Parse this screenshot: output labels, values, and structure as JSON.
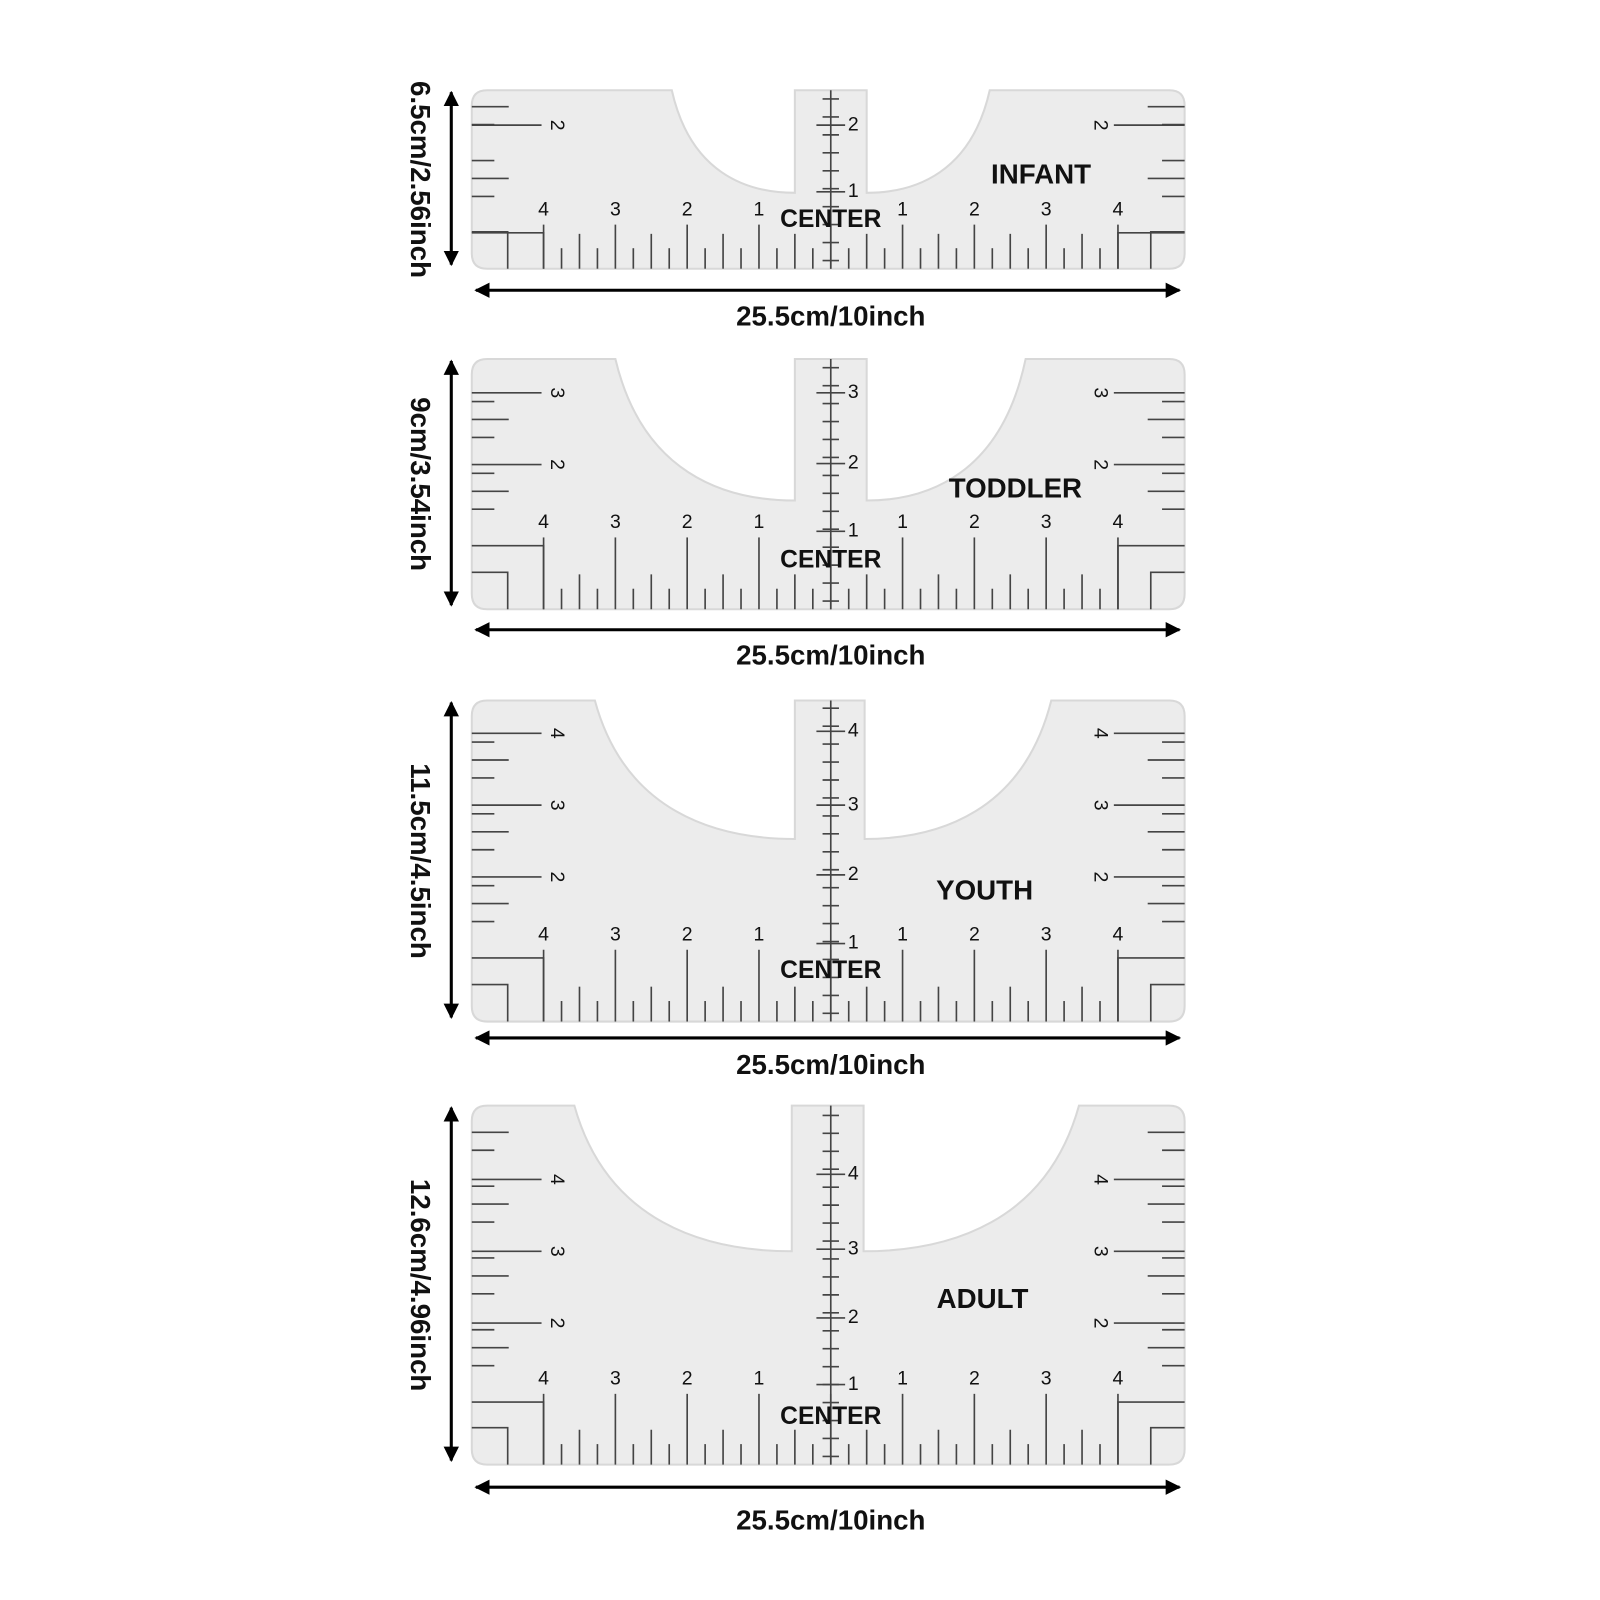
{
  "rulers": [
    {
      "name": "INFANT",
      "height_label": "6.5cm/2.56inch",
      "width_label": "25.5cm/10inch",
      "center_label": "CENTER",
      "left_numbers": [
        4,
        3,
        2,
        1
      ],
      "right_numbers": [
        1,
        2,
        3,
        4
      ],
      "center_numbers": [
        1,
        2
      ],
      "side_numbers": [
        2
      ]
    },
    {
      "name": "TODDLER",
      "height_label": "9cm/3.54inch",
      "width_label": "25.5cm/10inch",
      "center_label": "CENTER",
      "left_numbers": [
        4,
        3,
        2,
        1
      ],
      "right_numbers": [
        1,
        2,
        3,
        4
      ],
      "center_numbers": [
        1,
        2,
        3
      ],
      "side_numbers": [
        3,
        2
      ]
    },
    {
      "name": "YOUTH",
      "height_label": "11.5cm/4.5inch",
      "width_label": "25.5cm/10inch",
      "center_label": "CENTER",
      "left_numbers": [
        4,
        3,
        2,
        1
      ],
      "right_numbers": [
        1,
        2,
        3,
        4
      ],
      "center_numbers": [
        1,
        2,
        3,
        4
      ],
      "side_numbers": [
        4,
        3,
        2
      ]
    },
    {
      "name": "ADULT",
      "height_label": "12.6cm/4.96inch",
      "width_label": "25.5cm/10inch",
      "center_label": "CENTER",
      "left_numbers": [
        4,
        3,
        2,
        1
      ],
      "right_numbers": [
        1,
        2,
        3,
        4
      ],
      "center_numbers": [
        1,
        2,
        3,
        4
      ],
      "side_numbers": [
        4,
        3,
        2
      ]
    }
  ]
}
